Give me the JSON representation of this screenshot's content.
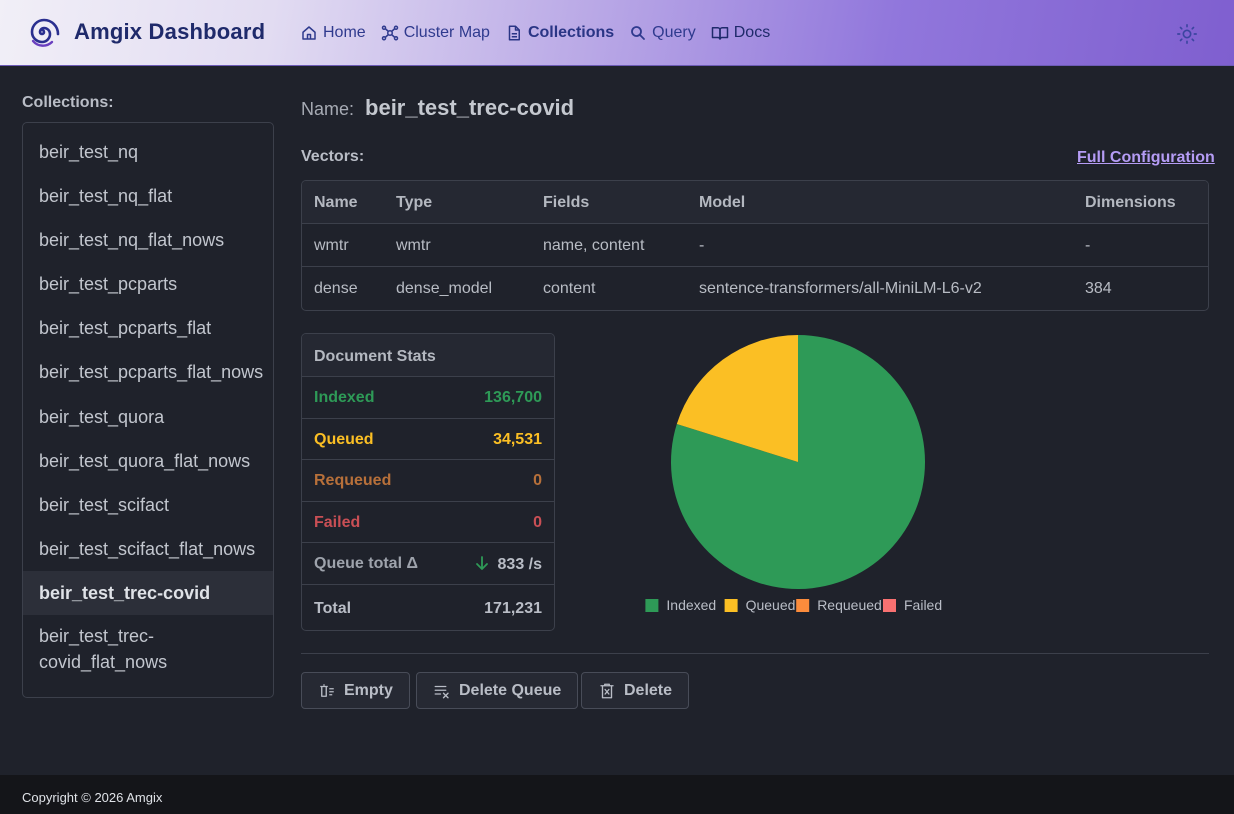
{
  "app": {
    "title": "Amgix Dashboard"
  },
  "nav": {
    "home": "Home",
    "cluster_map": "Cluster Map",
    "collections": "Collections",
    "query": "Query",
    "docs": "Docs"
  },
  "sidebar": {
    "heading": "Collections:",
    "items": [
      "beir_test_nq",
      "beir_test_nq_flat",
      "beir_test_nq_flat_nows",
      "beir_test_pcparts",
      "beir_test_pcparts_flat",
      "beir_test_pcparts_flat_nows",
      "beir_test_quora",
      "beir_test_quora_flat_nows",
      "beir_test_scifact",
      "beir_test_scifact_flat_nows",
      "beir_test_trec-covid",
      "beir_test_trec-covid_flat_nows"
    ],
    "selected": "beir_test_trec-covid"
  },
  "collection": {
    "name_label": "Name:",
    "name": "beir_test_trec-covid",
    "vectors_label": "Vectors:",
    "full_config_link": "Full Configuration"
  },
  "vectors": {
    "columns": [
      "Name",
      "Type",
      "Fields",
      "Model",
      "Dimensions"
    ],
    "rows": [
      [
        "wmtr",
        "wmtr",
        "name, content",
        "-",
        "-"
      ],
      [
        "dense",
        "dense_model",
        "content",
        "sentence-transformers/all-MiniLM-L6-v2",
        "384"
      ]
    ]
  },
  "stats": {
    "title": "Document Stats",
    "indexed_label": "Indexed",
    "indexed": "136,700",
    "queued_label": "Queued",
    "queued": "34,531",
    "requeued_label": "Requeued",
    "requeued": "0",
    "failed_label": "Failed",
    "failed": "0",
    "queue_delta_label": "Queue total Δ",
    "queue_delta": "833 /s",
    "total_label": "Total",
    "total": "171,231"
  },
  "chart_data": {
    "type": "pie",
    "labels": [
      "Indexed",
      "Queued",
      "Requeued",
      "Failed"
    ],
    "values": [
      136700,
      34531,
      0,
      0
    ],
    "colors": [
      "#2e9a57",
      "#fbbf24",
      "#fb8c3c",
      "#f87171"
    ],
    "legend": "bottom"
  },
  "actions": {
    "empty": "Empty",
    "delete_queue": "Delete Queue",
    "delete": "Delete"
  },
  "footer": {
    "copyright": "Copyright © 2026 Amgix"
  },
  "colors": {
    "indexed": "#2e9a57",
    "queued": "#fbbf24",
    "requeued": "#b7703a",
    "failed": "#c94f55",
    "accent": "#b59cf5"
  }
}
